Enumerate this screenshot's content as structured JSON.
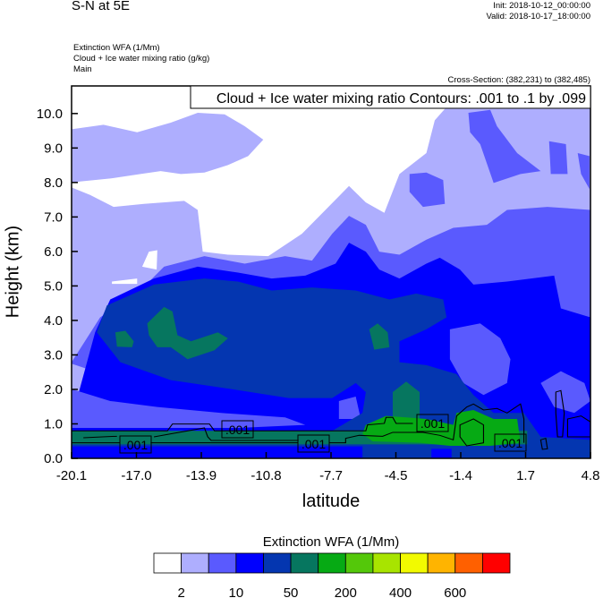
{
  "header": {
    "title": "S-N at 5E",
    "init": "Init: 2018-10-12_00:00:00",
    "valid": "Valid: 2018-10-17_18:00:00",
    "fields": [
      "Extinction WFA   (1/Mm)",
      "Cloud + Ice water mixing ratio   (g/kg)",
      "Main"
    ],
    "cross_section": "Cross-Section: (382,231) to (382,485)"
  },
  "chart_data": {
    "type": "heatmap",
    "title": "Extinction WFA (1/Mm) with Cloud + Ice water mixing ratio contours",
    "xlabel": "latitude",
    "ylabel": "Height (km)",
    "xlim": [
      -20.1,
      4.8
    ],
    "ylim": [
      0.0,
      10.8
    ],
    "x_ticks": [
      "-20.1",
      "-17.0",
      "-13.9",
      "-10.8",
      "-7.7",
      "-4.5",
      "-1.4",
      "1.7",
      "4.8"
    ],
    "y_ticks": [
      "0.0",
      "1.0",
      "2.0",
      "3.0",
      "4.0",
      "5.0",
      "6.0",
      "7.0",
      "8.0",
      "9.0",
      "10.0"
    ],
    "contour_legend": "Cloud + Ice water mixing ratio Contours: .001 to .1 by .099",
    "contour_labels": [
      ".001",
      ".001",
      ".001",
      ".001",
      ".001"
    ],
    "colorbar": {
      "title": "Extinction WFA  (1/Mm)",
      "colors": [
        "#ffffff",
        "#aeaefe",
        "#5a5afe",
        "#0000fe",
        "#0436b0",
        "#06765f",
        "#06aa14",
        "#54c80a",
        "#a8e400",
        "#f2fa00",
        "#ffb400",
        "#ff6000",
        "#ff0000"
      ],
      "labels": [
        "2",
        "10",
        "50",
        "200",
        "400",
        "600"
      ]
    }
  }
}
